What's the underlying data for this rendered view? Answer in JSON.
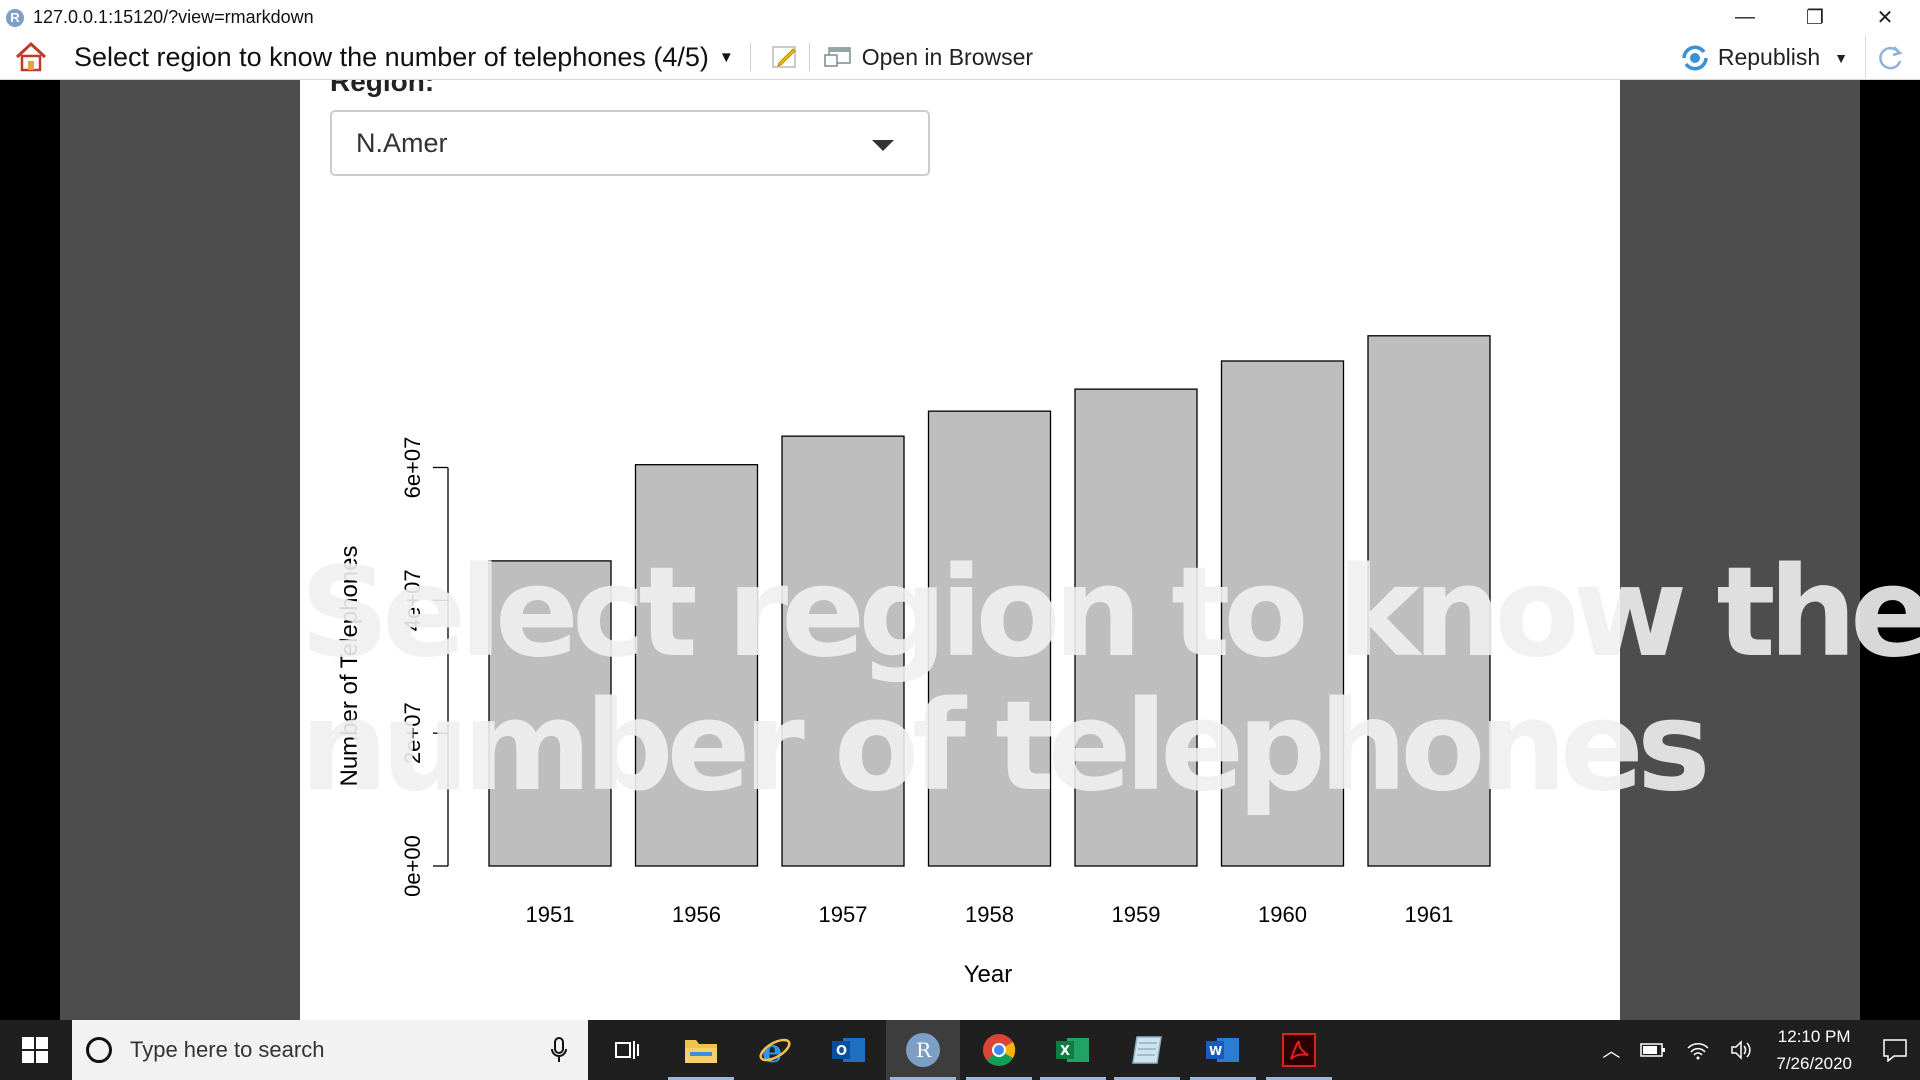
{
  "window": {
    "url": "127.0.0.1:15120/?view=rmarkdown",
    "app_icon": "r-logo-icon",
    "minimize": "—",
    "maximize": "❐",
    "close": "✕"
  },
  "toolbar": {
    "doc_title": "Select region to know the number of telephones (4/5)",
    "open_browser_label": "Open in Browser",
    "republish_label": "Republish"
  },
  "slide": {
    "region_label": "Region:",
    "region_selected": "N.Amer",
    "overlay_line1": "Select region to know the",
    "overlay_line2": "number of telephones"
  },
  "chart_data": {
    "type": "bar",
    "categories": [
      "1951",
      "1956",
      "1957",
      "1958",
      "1959",
      "1960",
      "1961"
    ],
    "values": [
      45939000,
      60423000,
      64721000,
      68484000,
      71799000,
      76036000,
      79831000
    ],
    "xlabel": "Year",
    "ylabel": "Number of Telephones",
    "ylim": [
      0,
      80000000
    ],
    "yticks": [
      0,
      20000000,
      40000000,
      60000000
    ],
    "ytick_labels": [
      "0e+00",
      "2e+07",
      "4e+07",
      "6e+07"
    ],
    "bar_color": "#bebebe",
    "grid": false
  },
  "taskbar": {
    "search_placeholder": "Type here to search",
    "time": "12:10 PM",
    "date": "7/26/2020"
  }
}
